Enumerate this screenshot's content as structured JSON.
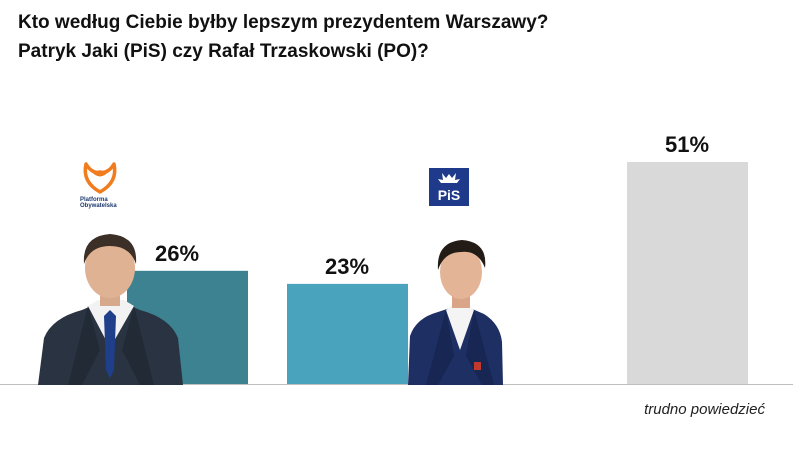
{
  "title_line1": "Kto według Ciebie byłby lepszym prezydentem Warszawy?",
  "title_line2": "Patryk Jaki (PiS) czy Rafał Trzaskowski (PO)?",
  "logos": {
    "po_text_1": "Platforma",
    "po_text_2": "Obywatelska",
    "pis_text": "PiS"
  },
  "chart_data": {
    "type": "bar",
    "title": "Kto według Ciebie byłby lepszym prezydentem Warszawy? Patryk Jaki (PiS) czy Rafał Trzaskowski (PO)?",
    "categories": [
      "",
      "",
      "trudno powiedzieć"
    ],
    "values": [
      26,
      23,
      51
    ],
    "value_labels": [
      "26%",
      "23%",
      "51%"
    ],
    "colors": [
      "#3c8290",
      "#4aa3bd",
      "#d9d9d9"
    ],
    "ylim": [
      0,
      51
    ],
    "grid": false
  }
}
